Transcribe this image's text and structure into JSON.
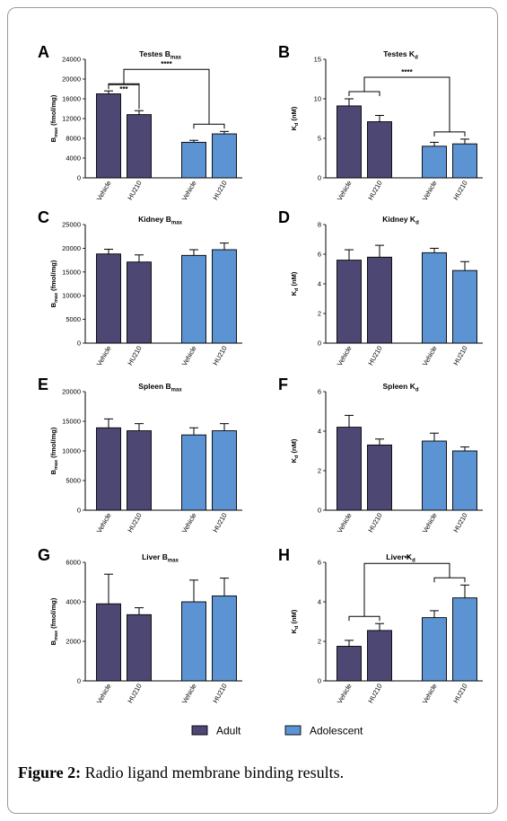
{
  "colors": {
    "adult": "#4d4774",
    "adolescent": "#5b93d3",
    "axis": "#000000"
  },
  "legend": [
    {
      "label": "Adult",
      "color_key": "adult"
    },
    {
      "label": "Adolescent",
      "color_key": "adolescent"
    }
  ],
  "caption": {
    "label": "Figure 2:",
    "text": " Radio ligand membrane binding results."
  },
  "chart_data": [
    {
      "id": "A",
      "type": "bar",
      "title": "Testes B",
      "title_sub": "max",
      "ylabel": "B",
      "ylabel_sub": "max",
      "ylabel_rest": " (fmol/mg)",
      "ylim": [
        0,
        24000
      ],
      "yticks": [
        0,
        4000,
        8000,
        12000,
        16000,
        20000,
        24000
      ],
      "categories": [
        "Vehicle",
        "HU210",
        "Vehicle",
        "HU210"
      ],
      "groups": [
        "Adult",
        "Adult",
        "Adolescent",
        "Adolescent"
      ],
      "values": [
        17000,
        12800,
        7200,
        8900
      ],
      "errors": [
        600,
        800,
        400,
        500
      ],
      "significance": [
        {
          "label": "***",
          "type": "within",
          "bars": [
            0,
            1
          ]
        },
        {
          "label": "****",
          "type": "between",
          "groups": [
            [
              0,
              1
            ],
            [
              2,
              3
            ]
          ]
        }
      ]
    },
    {
      "id": "B",
      "type": "bar",
      "title": "Testes K",
      "title_sub": "d",
      "ylabel": "K",
      "ylabel_sub": "d",
      "ylabel_rest": " (nM)",
      "ylim": [
        0,
        15
      ],
      "yticks": [
        0,
        5,
        10,
        15
      ],
      "categories": [
        "Vehicle",
        "HU210",
        "Vehicle",
        "HU210"
      ],
      "groups": [
        "Adult",
        "Adult",
        "Adolescent",
        "Adolescent"
      ],
      "values": [
        9.1,
        7.1,
        4.0,
        4.3
      ],
      "errors": [
        0.9,
        0.8,
        0.5,
        0.6
      ],
      "significance": [
        {
          "label": "****",
          "type": "between",
          "groups": [
            [
              0,
              1
            ],
            [
              2,
              3
            ]
          ]
        }
      ]
    },
    {
      "id": "C",
      "type": "bar",
      "title": "Kidney B",
      "title_sub": "max",
      "ylabel": "B",
      "ylabel_sub": "max",
      "ylabel_rest": " (fmol/mg)",
      "ylim": [
        0,
        25000
      ],
      "yticks": [
        0,
        5000,
        10000,
        15000,
        20000,
        25000
      ],
      "categories": [
        "Vehicle",
        "HU210",
        "Vehicle",
        "HU210"
      ],
      "groups": [
        "Adult",
        "Adult",
        "Adolescent",
        "Adolescent"
      ],
      "values": [
        18800,
        17100,
        18500,
        19700
      ],
      "errors": [
        1000,
        1500,
        1200,
        1400
      ],
      "significance": []
    },
    {
      "id": "D",
      "type": "bar",
      "title": "Kidney K",
      "title_sub": "d",
      "ylabel": "K",
      "ylabel_sub": "d",
      "ylabel_rest": " (nM)",
      "ylim": [
        0,
        8
      ],
      "yticks": [
        0,
        2,
        4,
        6,
        8
      ],
      "categories": [
        "Vehicle",
        "HU210",
        "Vehicle",
        "HU210"
      ],
      "groups": [
        "Adult",
        "Adult",
        "Adolescent",
        "Adolescent"
      ],
      "values": [
        5.6,
        5.8,
        6.1,
        4.9
      ],
      "errors": [
        0.7,
        0.8,
        0.3,
        0.6
      ],
      "significance": []
    },
    {
      "id": "E",
      "type": "bar",
      "title": "Spleen B",
      "title_sub": "max",
      "ylabel": "B",
      "ylabel_sub": "max",
      "ylabel_rest": " (fmol/mg)",
      "ylim": [
        0,
        20000
      ],
      "yticks": [
        0,
        5000,
        10000,
        15000,
        20000
      ],
      "categories": [
        "Vehicle",
        "HU210",
        "Vehicle",
        "HU210"
      ],
      "groups": [
        "Adult",
        "Adult",
        "Adolescent",
        "Adolescent"
      ],
      "values": [
        13900,
        13400,
        12700,
        13400
      ],
      "errors": [
        1500,
        1200,
        1200,
        1200
      ],
      "significance": []
    },
    {
      "id": "F",
      "type": "bar",
      "title": "Spleen K",
      "title_sub": "d",
      "ylabel": "K",
      "ylabel_sub": "d",
      "ylabel_rest": " (nM)",
      "ylim": [
        0,
        6
      ],
      "yticks": [
        0,
        2,
        4,
        6
      ],
      "categories": [
        "Vehicle",
        "HU210",
        "Vehicle",
        "HU210"
      ],
      "groups": [
        "Adult",
        "Adult",
        "Adolescent",
        "Adolescent"
      ],
      "values": [
        4.2,
        3.3,
        3.5,
        3.0
      ],
      "errors": [
        0.6,
        0.3,
        0.4,
        0.2
      ],
      "significance": []
    },
    {
      "id": "G",
      "type": "bar",
      "title": "Liver B",
      "title_sub": "max",
      "ylabel": "B",
      "ylabel_sub": "max",
      "ylabel_rest": " (fmol/mg)",
      "ylim": [
        0,
        6000
      ],
      "yticks": [
        0,
        2000,
        4000,
        6000
      ],
      "categories": [
        "Vehicle",
        "HU210",
        "Vehicle",
        "HU210"
      ],
      "groups": [
        "Adult",
        "Adult",
        "Adolescent",
        "Adolescent"
      ],
      "values": [
        3900,
        3350,
        4000,
        4300
      ],
      "errors": [
        1500,
        350,
        1100,
        900
      ],
      "significance": []
    },
    {
      "id": "H",
      "type": "bar",
      "title": "Liver K",
      "title_sub": "d",
      "ylabel": "K",
      "ylabel_sub": "d",
      "ylabel_rest": " (nM)",
      "ylim": [
        0,
        6
      ],
      "yticks": [
        0,
        2,
        4,
        6
      ],
      "categories": [
        "Vehicle",
        "HU210",
        "Vehicle",
        "HU210"
      ],
      "groups": [
        "Adult",
        "Adult",
        "Adolescent",
        "Adolescent"
      ],
      "values": [
        1.75,
        2.55,
        3.2,
        4.2
      ],
      "errors": [
        0.3,
        0.35,
        0.35,
        0.65
      ],
      "significance": [
        {
          "label": "**",
          "type": "between",
          "groups": [
            [
              0,
              1
            ],
            [
              2,
              3
            ]
          ]
        }
      ]
    }
  ]
}
